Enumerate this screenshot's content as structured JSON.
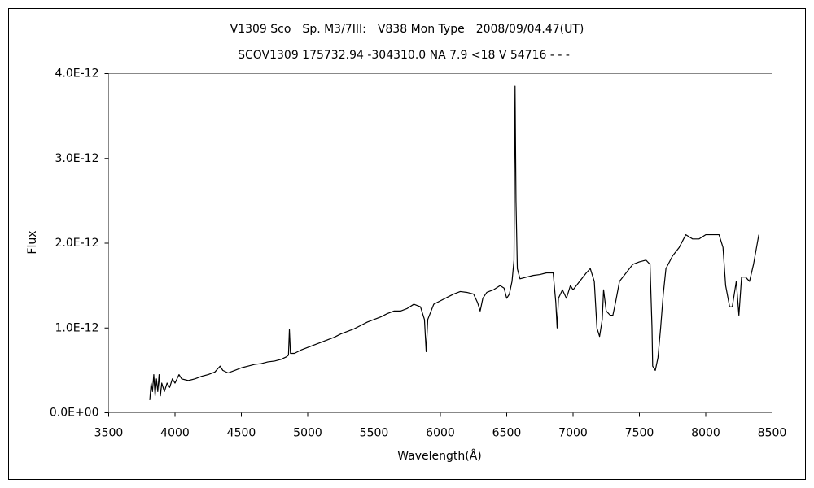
{
  "chart_data": {
    "type": "line",
    "title": "V1309 Sco　Sp. M3/7III:　V838 Mon Type　2008/09/04.47(UT)",
    "subtitle": "SCOV1309 175732.94 -304310.0 NA 7.9 <18 V 54716 - - -",
    "x_label": "Wavelength(Å)",
    "y_label": "Flux",
    "xlim": [
      3500,
      8500
    ],
    "xticks": [
      3500,
      4000,
      4500,
      5000,
      5500,
      6000,
      6500,
      7000,
      7500,
      8000,
      8500
    ],
    "ylim": [
      0,
      4e-12
    ],
    "yticks": [
      {
        "value": 0,
        "label": "0.0E+00"
      },
      {
        "value": 1e-12,
        "label": "1.0E-12"
      },
      {
        "value": 2e-12,
        "label": "2.0E-12"
      },
      {
        "value": 3e-12,
        "label": "3.0E-12"
      },
      {
        "value": 4e-12,
        "label": "4.0E-12"
      }
    ],
    "grid": false,
    "x": [
      3810,
      3820,
      3830,
      3840,
      3850,
      3860,
      3870,
      3880,
      3890,
      3900,
      3920,
      3940,
      3960,
      3980,
      4000,
      4030,
      4050,
      4100,
      4150,
      4200,
      4250,
      4300,
      4340,
      4360,
      4400,
      4450,
      4500,
      4550,
      4600,
      4650,
      4700,
      4750,
      4800,
      4840,
      4855,
      4862,
      4870,
      4900,
      4950,
      5000,
      5050,
      5100,
      5150,
      5200,
      5250,
      5300,
      5350,
      5400,
      5450,
      5500,
      5550,
      5600,
      5650,
      5700,
      5750,
      5800,
      5850,
      5880,
      5893,
      5905,
      5950,
      6000,
      6050,
      6100,
      6150,
      6200,
      6250,
      6280,
      6300,
      6320,
      6350,
      6400,
      6450,
      6480,
      6500,
      6520,
      6540,
      6555,
      6563,
      6570,
      6580,
      6600,
      6650,
      6700,
      6750,
      6800,
      6850,
      6870,
      6880,
      6890,
      6920,
      6950,
      6980,
      7000,
      7050,
      7100,
      7130,
      7160,
      7180,
      7200,
      7220,
      7230,
      7250,
      7280,
      7300,
      7320,
      7350,
      7400,
      7450,
      7500,
      7550,
      7580,
      7595,
      7600,
      7620,
      7640,
      7660,
      7680,
      7700,
      7750,
      7800,
      7850,
      7900,
      7950,
      8000,
      8050,
      8100,
      8130,
      8150,
      8180,
      8200,
      8230,
      8250,
      8270,
      8300,
      8330,
      8360,
      8400
    ],
    "series": [
      {
        "name": "Flux",
        "color": "#000000",
        "values": [
          1.5e-13,
          3.5e-13,
          2.5e-13,
          4.5e-13,
          2e-13,
          4e-13,
          2.5e-13,
          4.5e-13,
          2e-13,
          3.5e-13,
          2.5e-13,
          3.5e-13,
          3e-13,
          4e-13,
          3.5e-13,
          4.5e-13,
          4e-13,
          3.8e-13,
          4e-13,
          4.3e-13,
          4.5e-13,
          4.8e-13,
          5.5e-13,
          5e-13,
          4.7e-13,
          5e-13,
          5.3e-13,
          5.5e-13,
          5.7e-13,
          5.8e-13,
          6e-13,
          6.1e-13,
          6.3e-13,
          6.6e-13,
          6.8e-13,
          9.8e-13,
          7e-13,
          7e-13,
          7.4e-13,
          7.7e-13,
          8e-13,
          8.3e-13,
          8.6e-13,
          8.9e-13,
          9.3e-13,
          9.6e-13,
          9.9e-13,
          1.03e-12,
          1.07e-12,
          1.1e-12,
          1.13e-12,
          1.17e-12,
          1.2e-12,
          1.2e-12,
          1.23e-12,
          1.28e-12,
          1.25e-12,
          1.1e-12,
          7.2e-13,
          1.1e-12,
          1.28e-12,
          1.32e-12,
          1.36e-12,
          1.4e-12,
          1.43e-12,
          1.42e-12,
          1.4e-12,
          1.3e-12,
          1.2e-12,
          1.35e-12,
          1.42e-12,
          1.45e-12,
          1.5e-12,
          1.47e-12,
          1.35e-12,
          1.4e-12,
          1.55e-12,
          1.8e-12,
          3.85e-12,
          2.5e-12,
          1.7e-12,
          1.58e-12,
          1.6e-12,
          1.62e-12,
          1.63e-12,
          1.65e-12,
          1.65e-12,
          1.3e-12,
          1e-12,
          1.35e-12,
          1.45e-12,
          1.35e-12,
          1.5e-12,
          1.45e-12,
          1.55e-12,
          1.65e-12,
          1.7e-12,
          1.55e-12,
          1e-12,
          9e-13,
          1.1e-12,
          1.45e-12,
          1.2e-12,
          1.15e-12,
          1.15e-12,
          1.3e-12,
          1.55e-12,
          1.65e-12,
          1.75e-12,
          1.78e-12,
          1.8e-12,
          1.75e-12,
          1e-12,
          5.5e-13,
          5e-13,
          6.5e-13,
          1e-12,
          1.4e-12,
          1.7e-12,
          1.85e-12,
          1.95e-12,
          2.1e-12,
          2.05e-12,
          2.05e-12,
          2.1e-12,
          2.1e-12,
          2.1e-12,
          1.95e-12,
          1.5e-12,
          1.25e-12,
          1.25e-12,
          1.55e-12,
          1.15e-12,
          1.6e-12,
          1.6e-12,
          1.55e-12,
          1.75e-12,
          2.1e-12
        ]
      }
    ]
  }
}
